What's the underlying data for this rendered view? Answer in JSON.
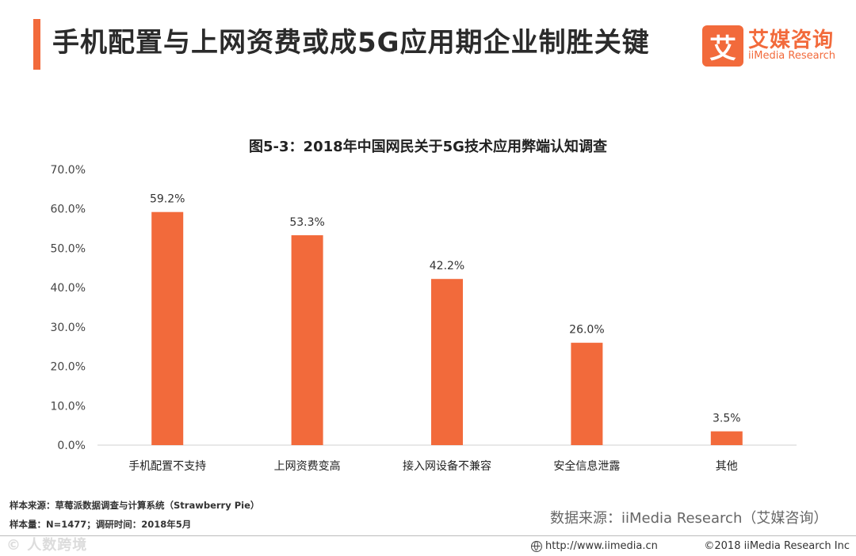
{
  "header": {
    "title": "手机配置与上网资费或成5G应用期企业制胜关键"
  },
  "logo": {
    "mark": "艾",
    "name_cn": "艾媒咨询",
    "name_en": "iiMedia Research"
  },
  "colors": {
    "accent": "#f26a3b",
    "bar": "#f26a3b",
    "axis": "#d0d0d0"
  },
  "chart_data": {
    "type": "bar",
    "title": "图5-3：2018年中国网民关于5G技术应用弊端认知调查",
    "categories": [
      "手机配置不支持",
      "上网资费变高",
      "接入网设备不兼容",
      "安全信息泄露",
      "其他"
    ],
    "values": [
      59.2,
      53.3,
      42.2,
      26.0,
      3.5
    ],
    "data_labels": [
      "59.2%",
      "53.3%",
      "42.2%",
      "26.0%",
      "3.5%"
    ],
    "yticks": [
      "0.0%",
      "10.0%",
      "20.0%",
      "30.0%",
      "40.0%",
      "50.0%",
      "60.0%",
      "70.0%"
    ],
    "ylim": [
      0,
      70
    ],
    "xlabel": "",
    "ylabel": "",
    "grid": false
  },
  "notes": {
    "sample_source": "样本来源：草莓派数据调查与计算系统（Strawberry   Pie）",
    "sample_size": "样本量：N=1477；调研时间：2018年5月"
  },
  "data_source": "数据来源：iiMedia Research（艾媒咨询）",
  "footer": {
    "url": "http://www.iimedia.cn",
    "copyright": "©2018  iiMedia Research  Inc",
    "watermark": "© 人数跨境"
  }
}
